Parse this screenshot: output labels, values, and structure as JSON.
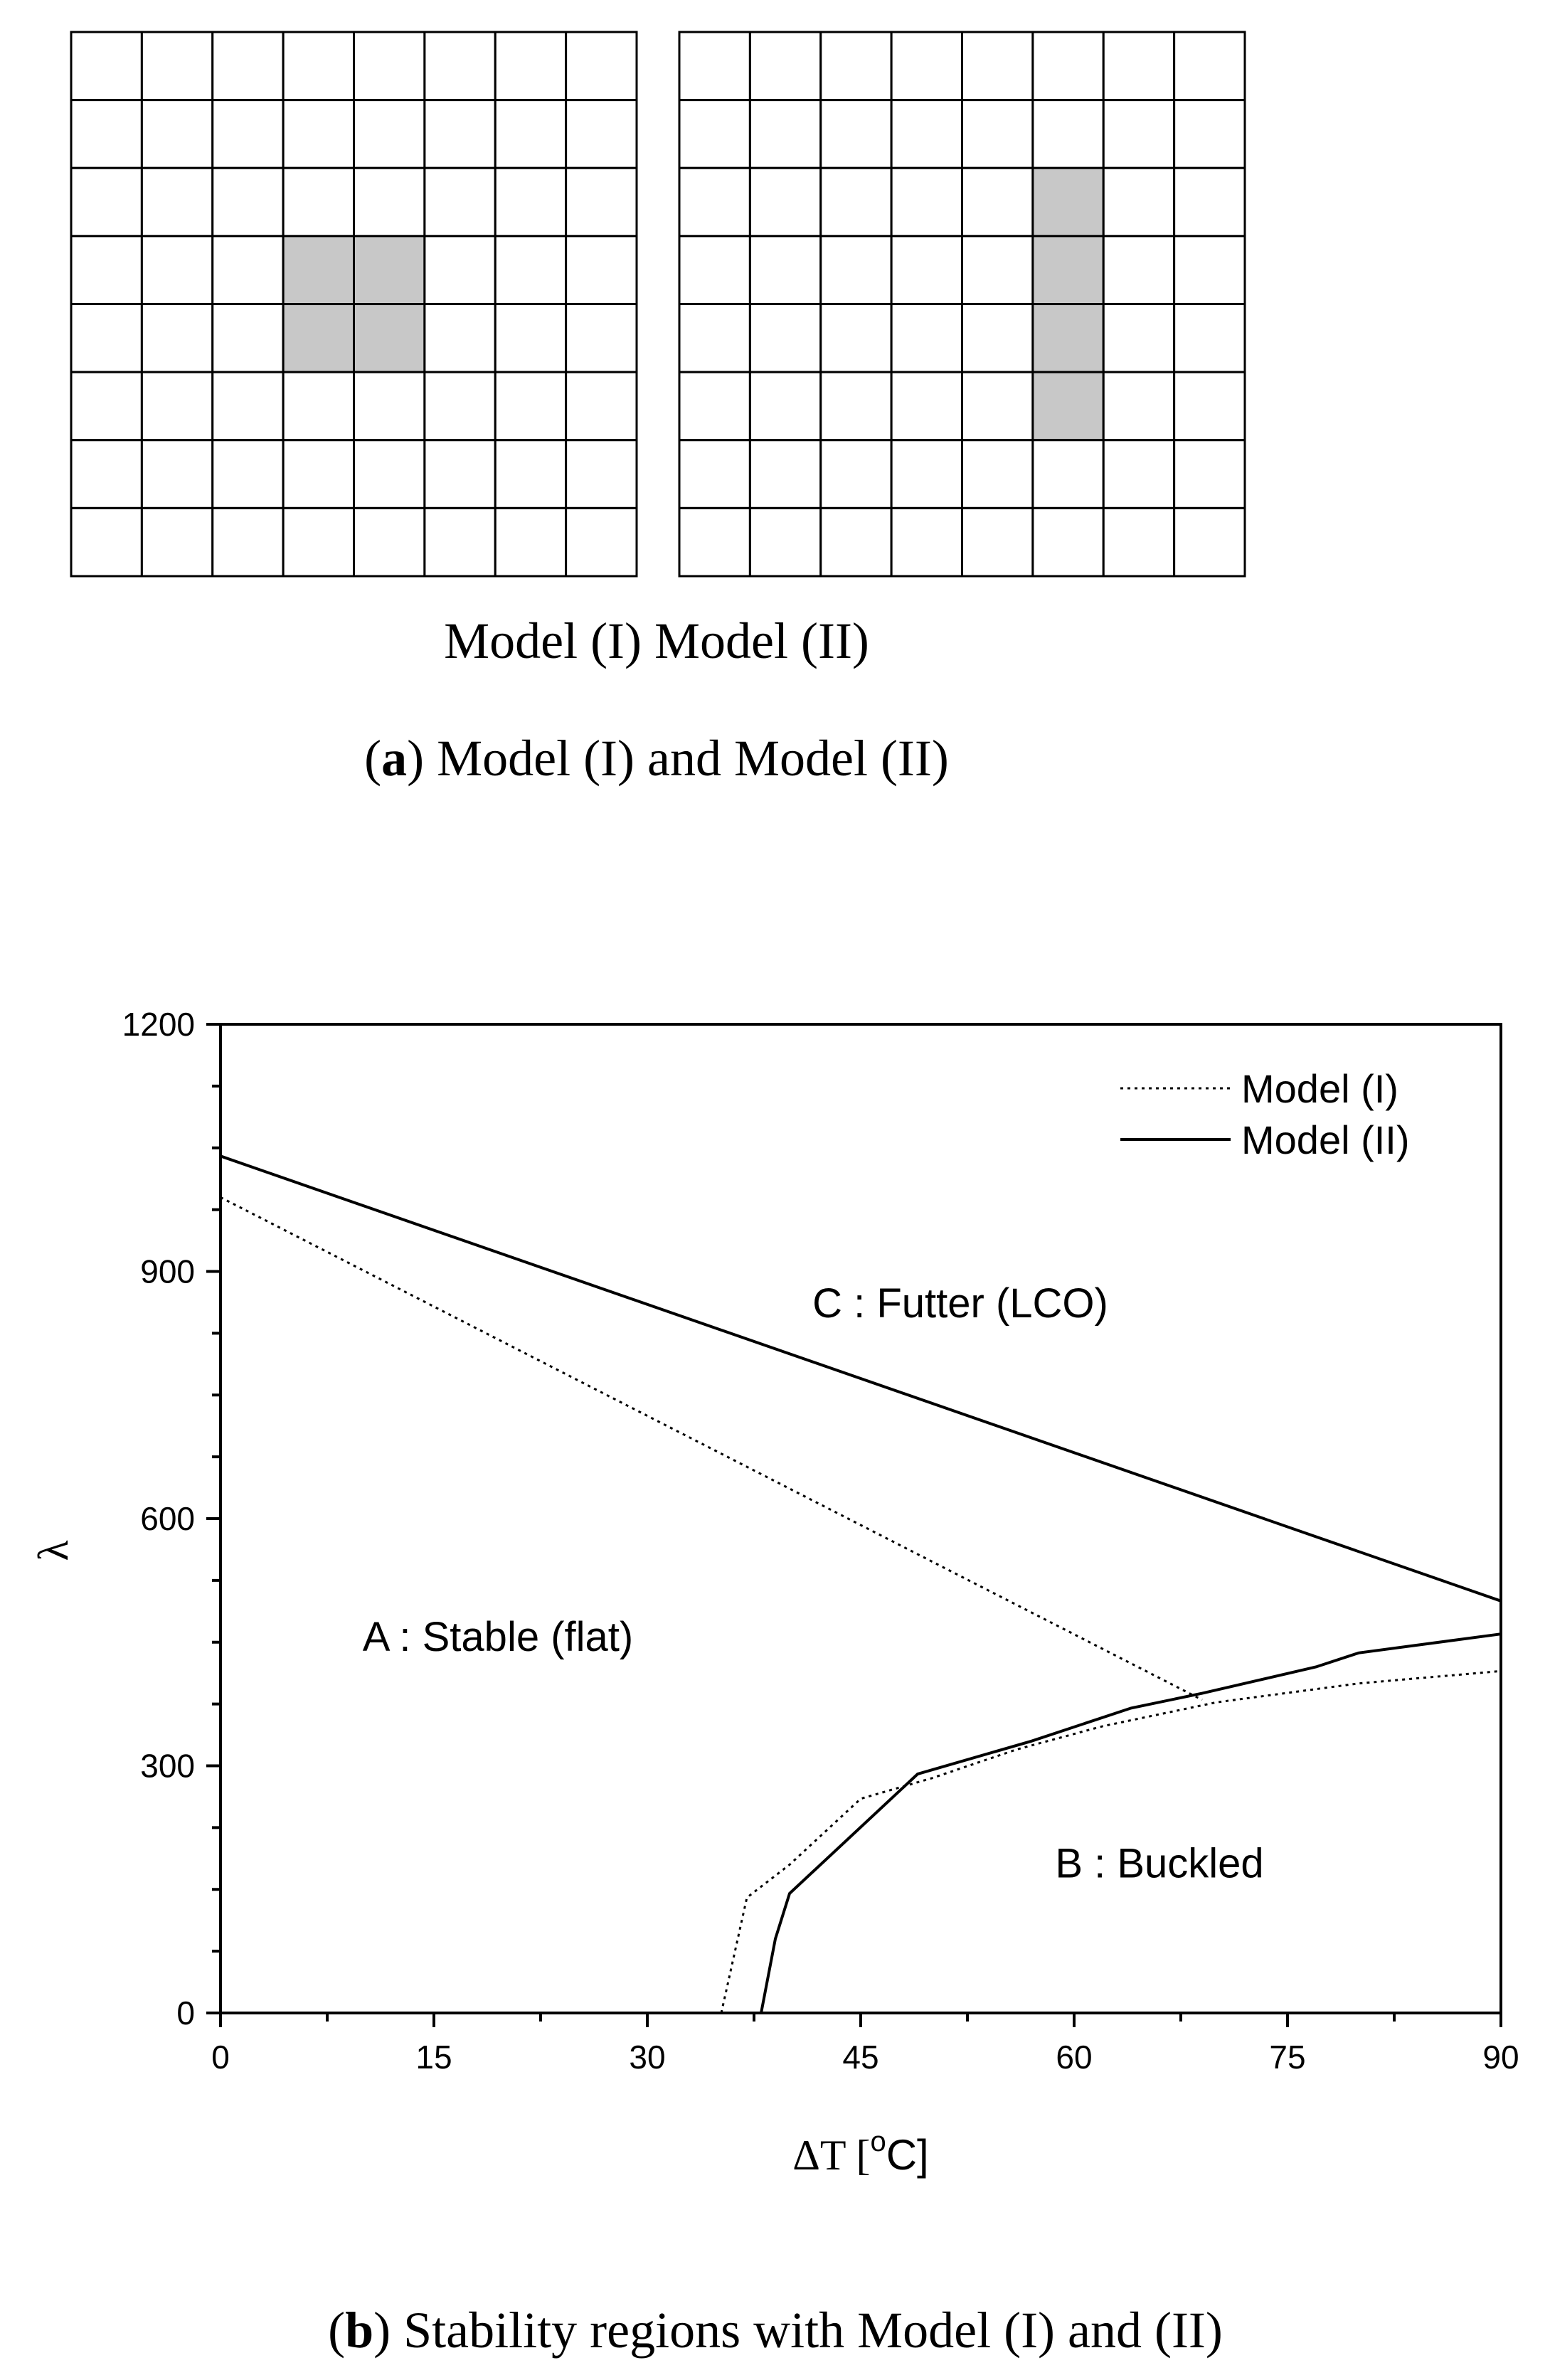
{
  "panel_a": {
    "model_labels": "Model (I) Model (II)",
    "caption_letter": "a",
    "caption_text": " Model (I) and Model (II)",
    "grid_rows": 8,
    "grid_cols": 8,
    "model_1_shaded_cells": [
      [
        3,
        3
      ],
      [
        3,
        4
      ],
      [
        4,
        3
      ],
      [
        4,
        4
      ]
    ],
    "model_2_shaded_cells": [
      [
        2,
        5
      ],
      [
        3,
        5
      ],
      [
        4,
        5
      ],
      [
        5,
        5
      ]
    ],
    "shade_color": "#c8c8c8"
  },
  "panel_b": {
    "caption_letter": "b",
    "caption_text": " Stability regions with Model (I) and (II)"
  },
  "chart_data": {
    "type": "line",
    "title": "",
    "xlabel_prefix": "ΔT [",
    "xlabel_sup": "o",
    "xlabel_suffix": "C]",
    "ylabel": "λ",
    "xlim": [
      0,
      90
    ],
    "ylim": [
      0,
      1200
    ],
    "x_ticks": [
      0,
      15,
      30,
      45,
      60,
      75,
      90
    ],
    "y_ticks": [
      0,
      300,
      600,
      900,
      1200
    ],
    "grid": false,
    "legend_position": "top-right",
    "series": [
      {
        "name": "Model (I)",
        "style": "dotted",
        "segments": [
          [
            [
              0,
              990
            ],
            [
              69,
              380
            ]
          ],
          [
            [
              35.2,
              0
            ],
            [
              37,
              140
            ],
            [
              40,
              180
            ],
            [
              45,
              260
            ],
            [
              50,
              285
            ],
            [
              56,
              320
            ],
            [
              62,
              348
            ],
            [
              70,
              377
            ],
            [
              80,
              400
            ],
            [
              90,
              415
            ]
          ]
        ]
      },
      {
        "name": "Model (II)",
        "style": "solid",
        "segments": [
          [
            [
              0,
              1040
            ],
            [
              90,
              500
            ]
          ],
          [
            [
              38,
              0
            ],
            [
              39,
              90
            ],
            [
              40,
              145
            ],
            [
              49,
              290
            ],
            [
              57,
              330
            ],
            [
              64,
              370
            ],
            [
              69,
              388
            ],
            [
              77,
              420
            ],
            [
              80,
              437
            ],
            [
              90,
              460
            ]
          ]
        ]
      }
    ],
    "annotations": [
      {
        "text": "C : Futter (LCO)",
        "x": 52,
        "y": 860
      },
      {
        "text": "A : Stable (flat)",
        "x": 19.5,
        "y": 455
      },
      {
        "text": "B : Buckled",
        "x": 66,
        "y": 180
      }
    ]
  }
}
